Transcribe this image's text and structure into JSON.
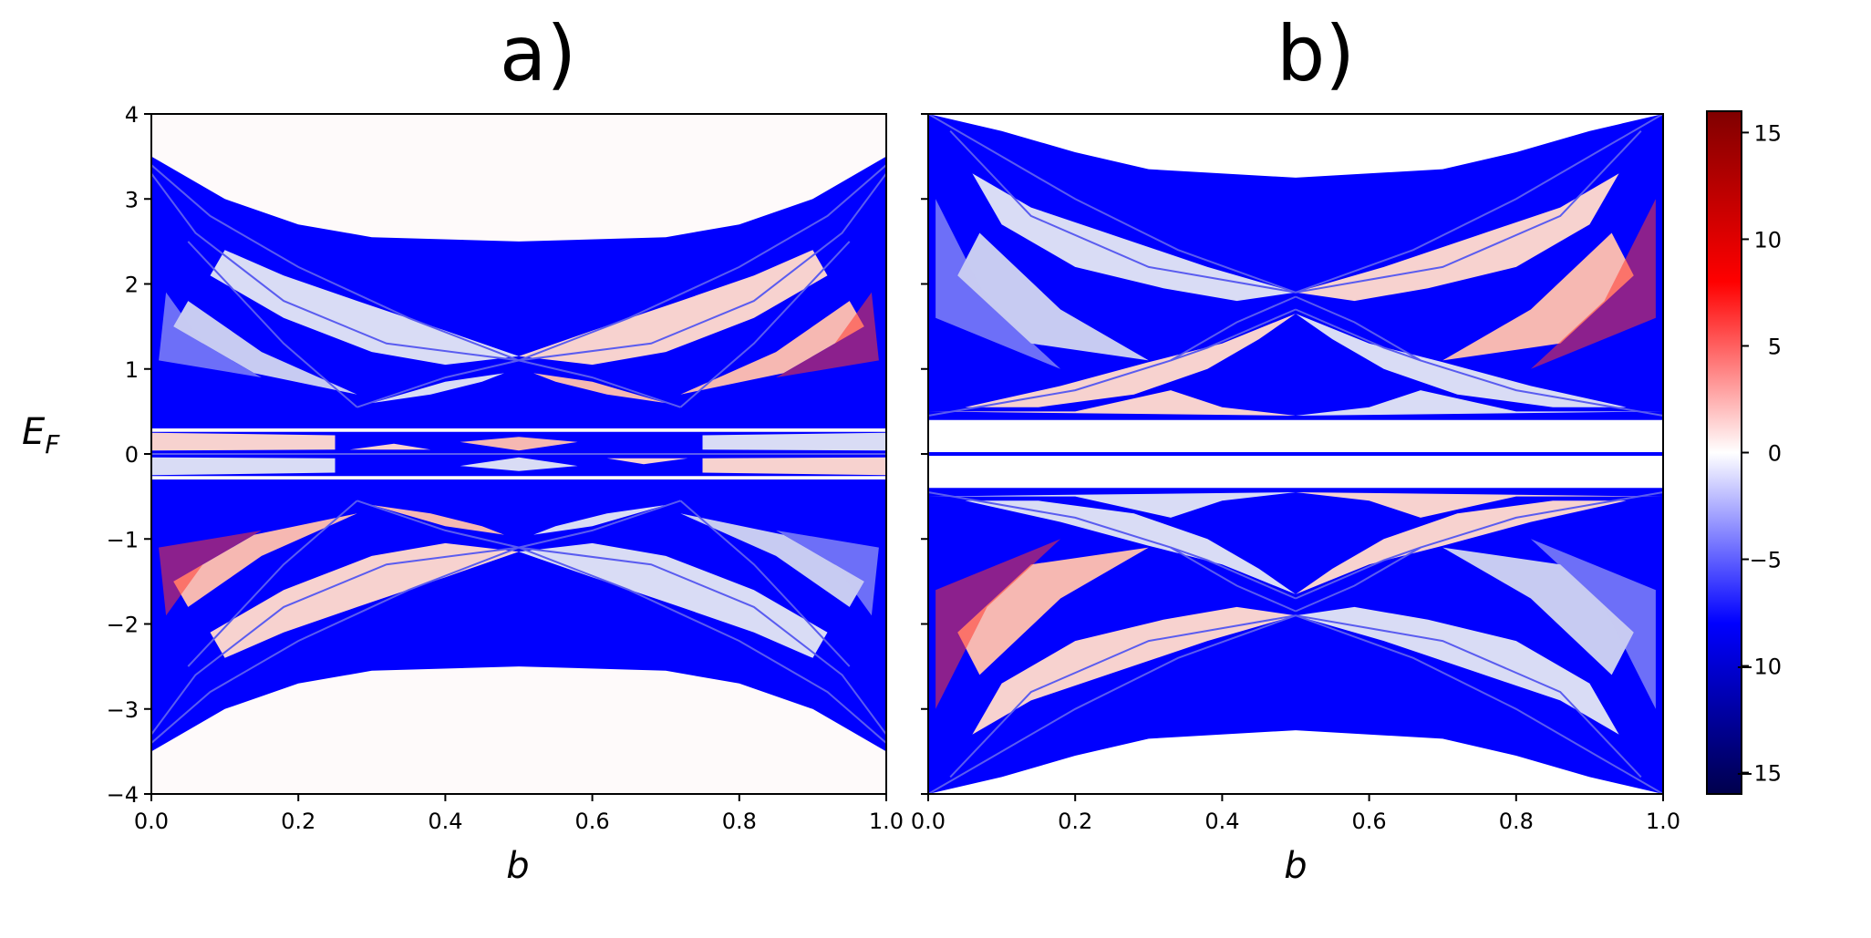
{
  "chart_data": [
    {
      "type": "heatmap",
      "panel_label": "a)",
      "xlabel": "b",
      "ylabel": "E",
      "ylabel_sub": "F",
      "xlim": [
        0.0,
        1.0
      ],
      "ylim": [
        -4,
        4
      ],
      "xticks": [
        "0.0",
        "0.2",
        "0.4",
        "0.6",
        "0.8",
        "1.0"
      ],
      "yticks": [
        "4",
        "3",
        "2",
        "1",
        "0",
        "−1",
        "−2",
        "−3",
        "−4"
      ],
      "xtick_values": [
        0.0,
        0.2,
        0.4,
        0.6,
        0.8,
        1.0
      ],
      "ytick_values": [
        4,
        3,
        2,
        1,
        0,
        -1,
        -2,
        -3,
        -4
      ],
      "band_edges": [
        {
          "b": 0.0,
          "E_max": 3.5
        },
        {
          "b": 0.1,
          "E_max": 3.0
        },
        {
          "b": 0.2,
          "E_max": 2.7
        },
        {
          "b": 0.3,
          "E_max": 2.55
        },
        {
          "b": 0.5,
          "E_max": 2.5
        },
        {
          "b": 0.7,
          "E_max": 2.55
        },
        {
          "b": 0.8,
          "E_max": 2.7
        },
        {
          "b": 0.9,
          "E_max": 3.0
        },
        {
          "b": 1.0,
          "E_max": 3.5
        }
      ],
      "center_gap_E": 0.3,
      "colormap": "seismic"
    },
    {
      "type": "heatmap",
      "panel_label": "b)",
      "xlabel": "b",
      "xlim": [
        0.0,
        1.0
      ],
      "ylim": [
        -4,
        4
      ],
      "xticks": [
        "0.0",
        "0.2",
        "0.4",
        "0.6",
        "0.8",
        "1.0"
      ],
      "xtick_values": [
        0.0,
        0.2,
        0.4,
        0.6,
        0.8,
        1.0
      ],
      "ytick_values": [
        4,
        3,
        2,
        1,
        0,
        -1,
        -2,
        -3,
        -4
      ],
      "band_edges": [
        {
          "b": 0.0,
          "E_max": 4.0
        },
        {
          "b": 0.1,
          "E_max": 3.8
        },
        {
          "b": 0.2,
          "E_max": 3.55
        },
        {
          "b": 0.3,
          "E_max": 3.35
        },
        {
          "b": 0.5,
          "E_max": 3.25
        },
        {
          "b": 0.7,
          "E_max": 3.35
        },
        {
          "b": 0.8,
          "E_max": 3.55
        },
        {
          "b": 0.9,
          "E_max": 3.8
        },
        {
          "b": 1.0,
          "E_max": 4.0
        }
      ],
      "gap_E": 0.4,
      "zero_line_E": 0,
      "colormap": "seismic"
    }
  ],
  "colorbar": {
    "ticks": [
      "15",
      "10",
      "5",
      "0",
      "−5",
      "−10",
      "−15"
    ],
    "tick_values": [
      15,
      10,
      5,
      0,
      -5,
      -10,
      -15
    ],
    "range": [
      -16,
      16
    ],
    "colors": {
      "min": "#00004c",
      "mid_low": "#0000ff",
      "zero": "#ffffff",
      "mid_high": "#ff0000",
      "max": "#800000"
    }
  },
  "colors": {
    "deep_blue": "#0000ff",
    "light_blue": "#d9dcf5",
    "pale_blue": "#c7cbf2",
    "light_red": "#f7d2cf",
    "pale_red": "#f6b8b2",
    "red": "#ff3b30",
    "dark_red": "#d10000",
    "line_blue": "#5a5cf0",
    "background": "#fefafa"
  }
}
